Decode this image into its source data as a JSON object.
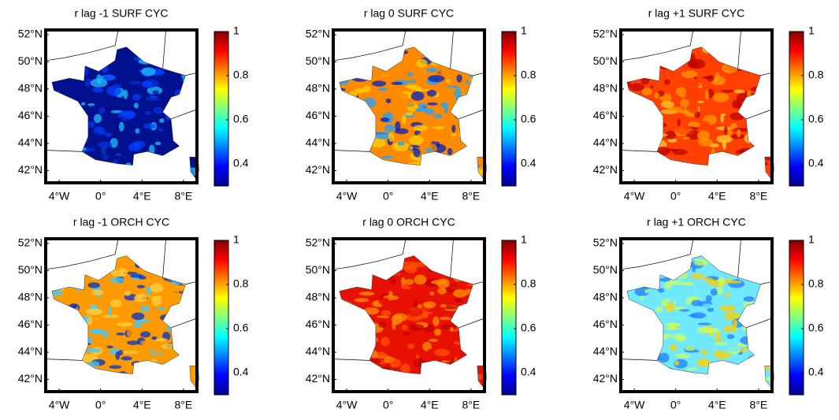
{
  "chart_data": {
    "type": "map",
    "colormap": "jet",
    "xlim": [
      -5.3,
      9.3
    ],
    "ylim": [
      41.1,
      52.35
    ],
    "xticks": [
      {
        "value": -4,
        "label": "4°W"
      },
      {
        "value": 0,
        "label": "0°"
      },
      {
        "value": 4,
        "label": "4°E"
      },
      {
        "value": 8,
        "label": "8°E"
      }
    ],
    "yticks": [
      {
        "value": 52,
        "label": "52°N"
      },
      {
        "value": 50,
        "label": "50°N"
      },
      {
        "value": 48,
        "label": "48°N"
      },
      {
        "value": 46,
        "label": "46°N"
      },
      {
        "value": 44,
        "label": "44°N"
      },
      {
        "value": 42,
        "label": "42°N"
      }
    ],
    "clim": [
      0.3,
      1
    ],
    "cticks": [
      1,
      0.8,
      0.6,
      0.4
    ],
    "panels": [
      {
        "title": "r lag -1 SURF CYC",
        "colors": [
          "#00108f",
          "#0030e0",
          "#20c0ff",
          "#0040ff"
        ]
      },
      {
        "title": "r lag 0 SURF CYC",
        "colors": [
          "#ff8a00",
          "#ffd000",
          "#20a0ff",
          "#0020c0"
        ]
      },
      {
        "title": "r lag +1 SURF CYC",
        "colors": [
          "#ff4000",
          "#ff9a00",
          "#c00000",
          "#ffd030"
        ]
      },
      {
        "title": "r lag -1 ORCH CYC",
        "colors": [
          "#ff9a00",
          "#40c8ff",
          "#0030d0",
          "#ffd040"
        ]
      },
      {
        "title": "r lag 0 ORCH CYC",
        "colors": [
          "#e81000",
          "#ff5000",
          "#ff9000",
          "#c00000"
        ]
      },
      {
        "title": "r lag +1 ORCH CYC",
        "colors": [
          "#70e8ff",
          "#c8ff60",
          "#ffd000",
          "#2080ff"
        ]
      }
    ]
  }
}
